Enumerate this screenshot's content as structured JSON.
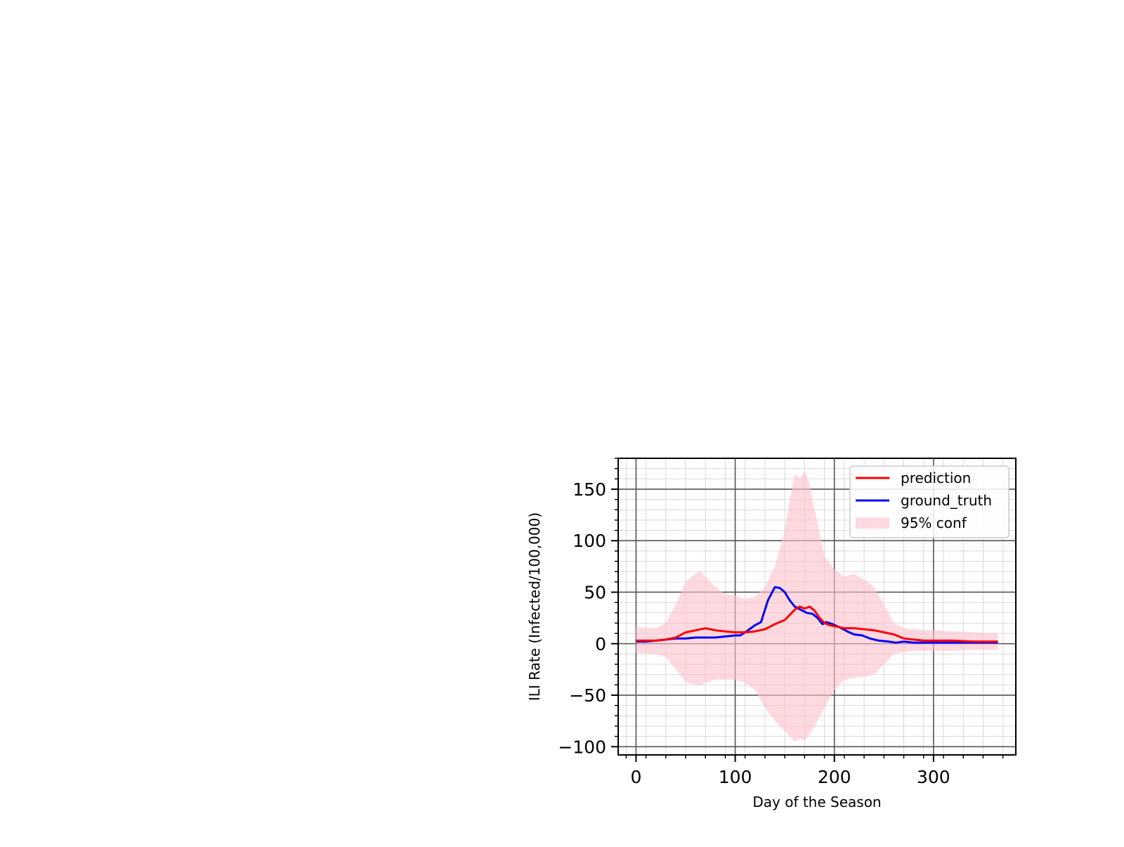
{
  "chart_data": {
    "type": "line",
    "xlabel": "Day of the Season",
    "ylabel": "ILI Rate (Infected/100,000)",
    "xlim": [
      -18,
      383
    ],
    "ylim": [
      -108,
      180
    ],
    "x_ticks": [
      0,
      100,
      200,
      300
    ],
    "y_ticks": [
      -100,
      -50,
      0,
      50,
      100,
      150
    ],
    "x_tick_labels": [
      "0",
      "100",
      "200",
      "300"
    ],
    "y_tick_labels": [
      "−100",
      "−50",
      "0",
      "50",
      "100",
      "150"
    ],
    "grid": {
      "major": true,
      "minor": true
    },
    "legend": {
      "position": "top-right",
      "entries": [
        "prediction",
        "ground_truth",
        "95% conf"
      ]
    },
    "colors": {
      "prediction": "#ff0000",
      "ground_truth": "#0000ff",
      "band": "#ffc0cb"
    },
    "series": [
      {
        "name": "prediction",
        "x": [
          0,
          10,
          20,
          30,
          40,
          50,
          60,
          70,
          80,
          90,
          100,
          110,
          120,
          130,
          140,
          150,
          160,
          165,
          170,
          175,
          180,
          185,
          190,
          195,
          200,
          210,
          220,
          230,
          240,
          250,
          260,
          270,
          280,
          290,
          300,
          320,
          340,
          365
        ],
        "y": [
          3,
          3,
          3,
          4,
          6,
          11,
          13,
          15,
          13,
          12,
          11,
          11,
          12,
          14,
          19,
          23,
          33,
          36,
          34,
          36,
          32,
          25,
          20,
          18,
          17,
          15,
          15,
          14,
          13,
          11,
          9,
          5,
          4,
          3,
          3,
          3,
          2,
          2
        ]
      },
      {
        "name": "ground_truth",
        "x": [
          0,
          10,
          20,
          30,
          40,
          50,
          60,
          70,
          80,
          90,
          100,
          105,
          110,
          120,
          126,
          133,
          140,
          145,
          150,
          155,
          160,
          166,
          172,
          178,
          183,
          188,
          192,
          198,
          205,
          213,
          220,
          228,
          236,
          245,
          255,
          262,
          270,
          280,
          300,
          330,
          365
        ],
        "y": [
          2,
          2,
          3,
          4,
          5,
          5,
          6,
          6,
          6,
          7,
          8,
          8,
          11,
          18,
          21,
          42,
          55,
          54,
          50,
          42,
          36,
          33,
          30,
          29,
          25,
          19,
          21,
          19,
          16,
          12,
          9,
          8,
          5,
          3,
          2,
          1,
          2,
          1,
          1,
          1,
          1
        ]
      },
      {
        "name": "95% conf",
        "x": [
          0,
          20,
          30,
          40,
          50,
          60,
          65,
          70,
          80,
          90,
          100,
          110,
          120,
          130,
          140,
          150,
          155,
          160,
          165,
          170,
          175,
          180,
          190,
          200,
          210,
          220,
          230,
          240,
          250,
          260,
          270,
          280,
          300,
          320,
          340,
          365
        ],
        "upper": [
          16,
          15,
          20,
          38,
          60,
          68,
          70,
          65,
          55,
          48,
          47,
          43,
          46,
          55,
          75,
          110,
          140,
          165,
          160,
          168,
          155,
          130,
          85,
          72,
          65,
          68,
          62,
          55,
          38,
          20,
          15,
          14,
          13,
          12,
          11,
          10
        ],
        "lower": [
          -9,
          -10,
          -13,
          -25,
          -37,
          -40,
          -40,
          -38,
          -35,
          -35,
          -35,
          -38,
          -45,
          -62,
          -75,
          -85,
          -90,
          -95,
          -92,
          -94,
          -88,
          -80,
          -62,
          -45,
          -35,
          -33,
          -32,
          -30,
          -20,
          -10,
          -8,
          -7,
          -7,
          -7,
          -6,
          -6
        ]
      }
    ]
  }
}
